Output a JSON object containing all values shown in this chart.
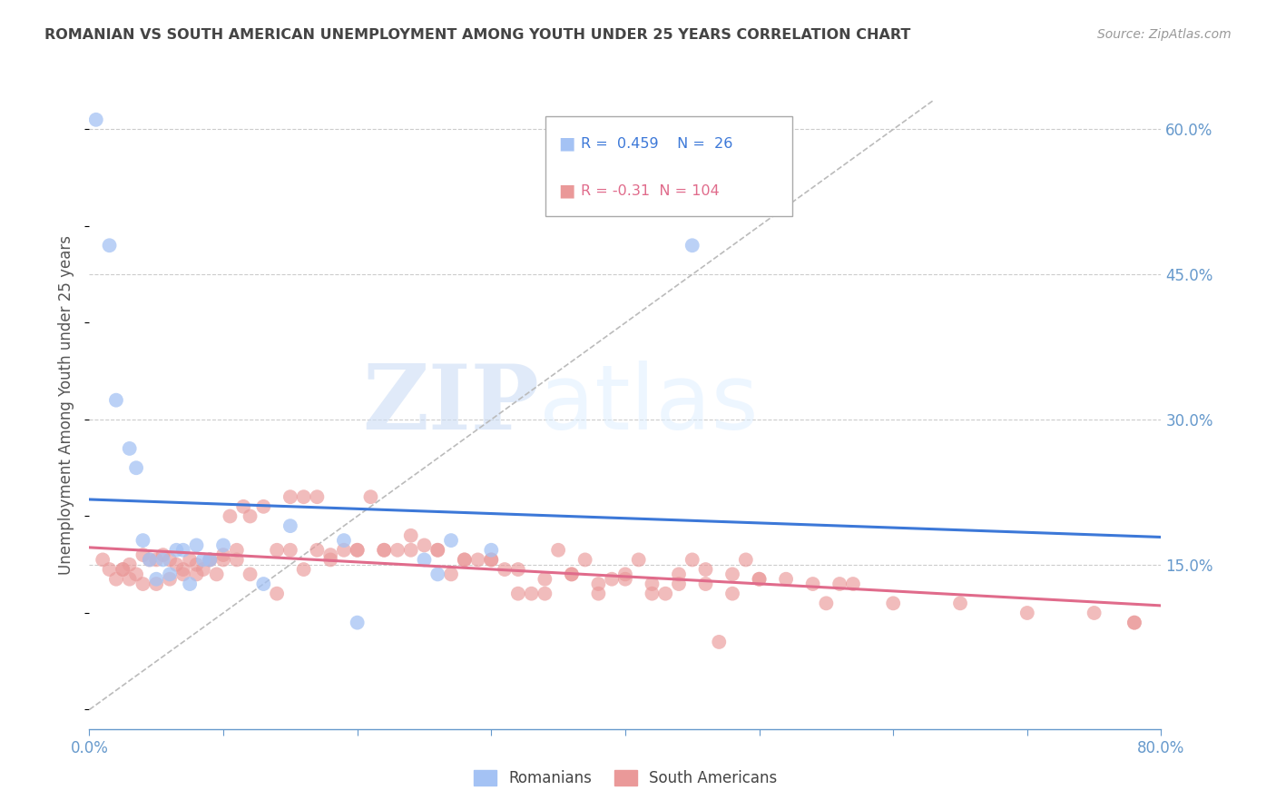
{
  "title": "ROMANIAN VS SOUTH AMERICAN UNEMPLOYMENT AMONG YOUTH UNDER 25 YEARS CORRELATION CHART",
  "source": "Source: ZipAtlas.com",
  "ylabel": "Unemployment Among Youth under 25 years",
  "xlim": [
    0,
    0.8
  ],
  "ylim": [
    -0.02,
    0.65
  ],
  "yticks": [
    0.15,
    0.3,
    0.45,
    0.6
  ],
  "ytick_labels": [
    "15.0%",
    "30.0%",
    "45.0%",
    "60.0%"
  ],
  "xticks": [
    0.0,
    0.1,
    0.2,
    0.3,
    0.4,
    0.5,
    0.6,
    0.7,
    0.8
  ],
  "xtick_labels": [
    "0.0%",
    "",
    "",
    "",
    "",
    "",
    "",
    "",
    "80.0%"
  ],
  "blue_color": "#a4c2f4",
  "pink_color": "#ea9999",
  "blue_line_color": "#3c78d8",
  "pink_line_color": "#e06b8b",
  "R_blue": 0.459,
  "N_blue": 26,
  "R_pink": -0.31,
  "N_pink": 104,
  "blue_scatter_x": [
    0.005,
    0.015,
    0.02,
    0.03,
    0.035,
    0.04,
    0.045,
    0.05,
    0.055,
    0.06,
    0.065,
    0.07,
    0.075,
    0.08,
    0.085,
    0.09,
    0.1,
    0.13,
    0.15,
    0.19,
    0.2,
    0.25,
    0.26,
    0.27,
    0.3,
    0.45
  ],
  "blue_scatter_y": [
    0.61,
    0.48,
    0.32,
    0.27,
    0.25,
    0.175,
    0.155,
    0.135,
    0.155,
    0.14,
    0.165,
    0.165,
    0.13,
    0.17,
    0.155,
    0.155,
    0.17,
    0.13,
    0.19,
    0.175,
    0.09,
    0.155,
    0.14,
    0.175,
    0.165,
    0.48
  ],
  "pink_scatter_x": [
    0.01,
    0.015,
    0.02,
    0.025,
    0.03,
    0.035,
    0.04,
    0.045,
    0.05,
    0.055,
    0.06,
    0.065,
    0.07,
    0.075,
    0.08,
    0.085,
    0.09,
    0.095,
    0.1,
    0.105,
    0.11,
    0.115,
    0.12,
    0.13,
    0.14,
    0.15,
    0.16,
    0.17,
    0.18,
    0.19,
    0.2,
    0.21,
    0.22,
    0.23,
    0.24,
    0.25,
    0.26,
    0.27,
    0.28,
    0.29,
    0.3,
    0.31,
    0.32,
    0.33,
    0.34,
    0.35,
    0.36,
    0.37,
    0.38,
    0.39,
    0.4,
    0.41,
    0.42,
    0.43,
    0.44,
    0.45,
    0.46,
    0.47,
    0.48,
    0.49,
    0.5,
    0.52,
    0.54,
    0.56,
    0.57,
    0.6,
    0.65,
    0.7,
    0.75,
    0.78,
    0.025,
    0.03,
    0.04,
    0.05,
    0.06,
    0.07,
    0.08,
    0.09,
    0.1,
    0.11,
    0.12,
    0.14,
    0.15,
    0.16,
    0.17,
    0.18,
    0.2,
    0.22,
    0.24,
    0.26,
    0.28,
    0.3,
    0.32,
    0.34,
    0.36,
    0.38,
    0.4,
    0.42,
    0.44,
    0.46,
    0.48,
    0.5,
    0.55,
    0.78
  ],
  "pink_scatter_y": [
    0.155,
    0.145,
    0.135,
    0.145,
    0.15,
    0.14,
    0.16,
    0.155,
    0.155,
    0.16,
    0.155,
    0.15,
    0.14,
    0.155,
    0.15,
    0.145,
    0.155,
    0.14,
    0.16,
    0.2,
    0.165,
    0.21,
    0.2,
    0.21,
    0.12,
    0.165,
    0.145,
    0.165,
    0.16,
    0.165,
    0.165,
    0.22,
    0.165,
    0.165,
    0.18,
    0.17,
    0.165,
    0.14,
    0.155,
    0.155,
    0.155,
    0.145,
    0.12,
    0.12,
    0.12,
    0.165,
    0.14,
    0.155,
    0.12,
    0.135,
    0.14,
    0.155,
    0.12,
    0.12,
    0.14,
    0.155,
    0.145,
    0.07,
    0.14,
    0.155,
    0.135,
    0.135,
    0.13,
    0.13,
    0.13,
    0.11,
    0.11,
    0.1,
    0.1,
    0.09,
    0.145,
    0.135,
    0.13,
    0.13,
    0.135,
    0.145,
    0.14,
    0.155,
    0.155,
    0.155,
    0.14,
    0.165,
    0.22,
    0.22,
    0.22,
    0.155,
    0.165,
    0.165,
    0.165,
    0.165,
    0.155,
    0.155,
    0.145,
    0.135,
    0.14,
    0.13,
    0.135,
    0.13,
    0.13,
    0.13,
    0.12,
    0.135,
    0.11,
    0.09
  ],
  "watermark_zip": "ZIP",
  "watermark_atlas": "atlas",
  "background_color": "#ffffff",
  "grid_color": "#cccccc",
  "axis_color": "#6699cc",
  "title_color": "#444444"
}
